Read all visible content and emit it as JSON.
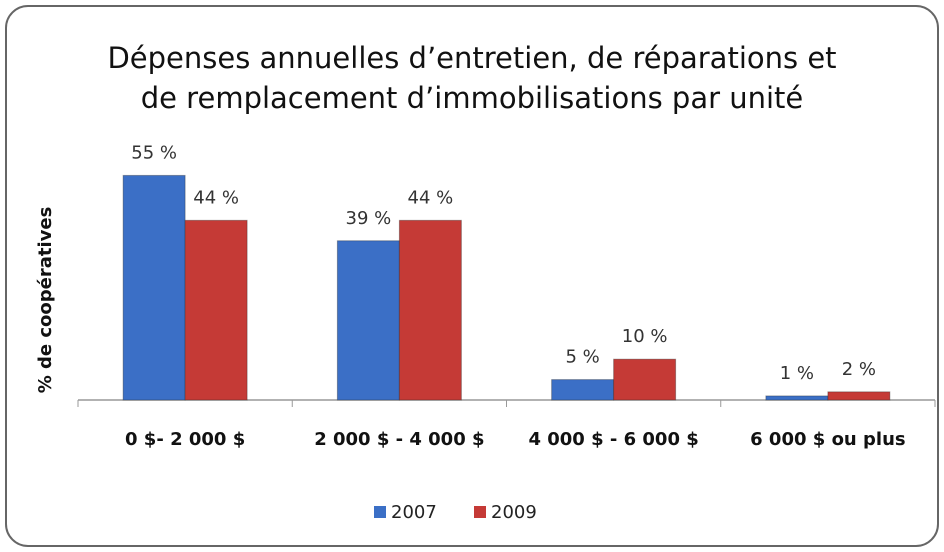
{
  "chart_data": {
    "type": "bar",
    "title": "Dépenses annuelles d’entretien, de réparations et",
    "subtitle": "de remplacement d’immobilisations par unité",
    "y_label": "% de coopératives",
    "categories": [
      "0 $- 2 000 $",
      "2 000 $ - 4 000 $",
      "4 000 $ - 6 000 $",
      "6 000 $ ou plus"
    ],
    "series": [
      {
        "name": "2007",
        "color": "#3b6fc6",
        "values": [
          55,
          39,
          5,
          1
        ],
        "value_labels": [
          "55 %",
          "39 %",
          "5 %",
          "1 %"
        ]
      },
      {
        "name": "2009",
        "color": "#c53a36",
        "values": [
          44,
          44,
          10,
          2
        ],
        "value_labels": [
          "44 %",
          "44 %",
          "10 %",
          "2 %"
        ]
      }
    ],
    "ylim": [
      0,
      60
    ],
    "grid": false,
    "legend": "bottom"
  }
}
